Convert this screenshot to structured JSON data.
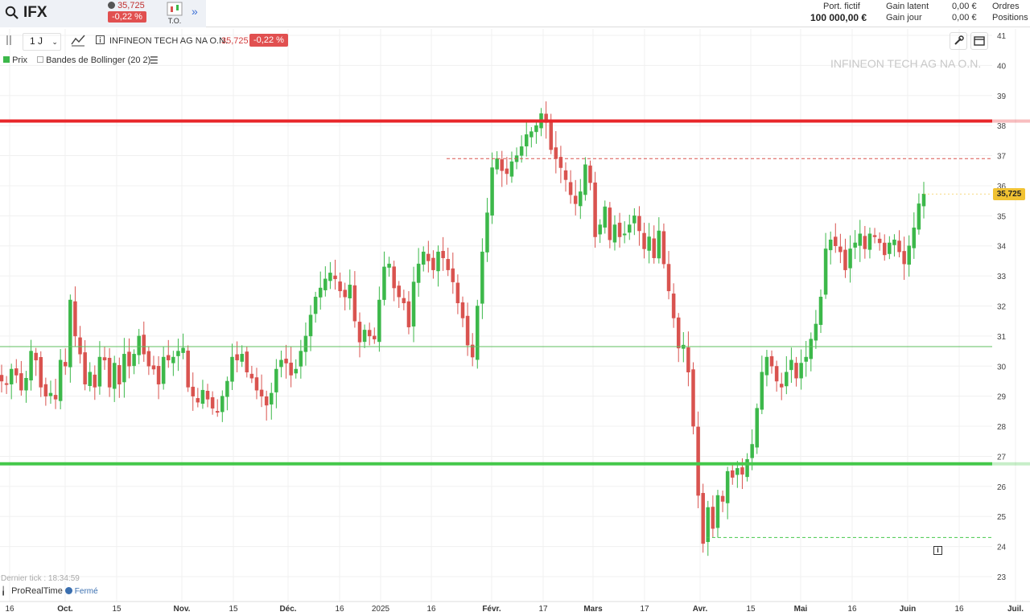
{
  "topbar": {
    "symbol": "IFX",
    "quote_price": "35,725",
    "quote_change": "-0,22 %",
    "to_label": "T.O.",
    "portfolio_label": "Port. fictif",
    "portfolio_value": "100 000,00 €",
    "latent_label": "Gain latent",
    "latent_value": "0,00 €",
    "day_label": "Gain jour",
    "day_value": "0,00 €",
    "orders_label": "Ordres",
    "positions_label": "Positions"
  },
  "toolbar": {
    "interval": "1 J",
    "instrument_name": "INFINEON TECH AG NA O.N.",
    "instrument_price": "35,725",
    "instrument_change": "-0,22 %"
  },
  "legend": {
    "price_label": "Prix",
    "bollinger_label": "Bandes de Bollinger (20 2)"
  },
  "watermark": "INFINEON TECH AG NA O.N.",
  "footer": {
    "last_tick": "Dernier tick : 18:34:59",
    "provider": "ProRealTime",
    "status": "Fermé"
  },
  "price_label": "35,725",
  "colors": {
    "up": "#3cb84a",
    "down": "#d9534f",
    "resistance": "#e8262a",
    "support": "#44c84a"
  },
  "chart_data": {
    "type": "candlestick",
    "y_ticks": [
      23,
      24,
      25,
      26,
      27,
      28,
      29,
      30,
      31,
      32,
      33,
      34,
      35,
      36,
      37,
      38,
      39,
      40,
      41
    ],
    "x_ticks": [
      "16",
      "Oct.",
      "15",
      "Nov.",
      "15",
      "Déc.",
      "16",
      "2025",
      "16",
      "Févr.",
      "17",
      "Mars",
      "17",
      "Avr.",
      "15",
      "Mai",
      "16",
      "Juin",
      "16",
      "Juil."
    ],
    "horizontal_lines": [
      {
        "value": 38.15,
        "style": "solid-thick",
        "color": "#e8262a"
      },
      {
        "value": 36.9,
        "style": "dashed",
        "color": "#d9534f"
      },
      {
        "value": 30.65,
        "style": "solid-thin",
        "color": "#5fbf5f"
      },
      {
        "value": 26.75,
        "style": "solid-thick",
        "color": "#44c84a"
      },
      {
        "value": 24.3,
        "style": "dashed",
        "color": "#44c84a"
      }
    ],
    "last_price": 35.725,
    "closes": [
      29.5,
      29.4,
      29.9,
      29.7,
      29.2,
      29.6,
      30.5,
      30.2,
      29.3,
      29.0,
      29.1,
      28.9,
      30.2,
      30.0,
      32.2,
      31.0,
      30.4,
      29.4,
      29.8,
      29.3,
      30.3,
      30.2,
      29.3,
      30.1,
      29.4,
      30.4,
      30.0,
      30.4,
      31.0,
      30.4,
      30.0,
      29.9,
      29.4,
      30.3,
      30.2,
      30.3,
      30.5,
      30.6,
      29.3,
      29.0,
      28.8,
      29.2,
      28.9,
      28.6,
      28.5,
      29.0,
      29.5,
      30.3,
      30.2,
      30.4,
      29.8,
      29.6,
      29.2,
      29.0,
      28.7,
      29.1,
      29.9,
      30.2,
      30.1,
      29.7,
      29.9,
      30.5,
      31.0,
      31.7,
      32.3,
      32.6,
      32.9,
      33.1,
      32.9,
      32.5,
      32.3,
      32.7,
      31.5,
      30.8,
      31.2,
      31.0,
      30.9,
      32.2,
      33.3,
      33.4,
      32.6,
      32.3,
      32.1,
      31.3,
      32.8,
      33.4,
      33.8,
      33.5,
      33.2,
      33.8,
      33.6,
      33.2,
      32.8,
      32.1,
      31.6,
      30.7,
      30.3,
      32.0,
      33.8,
      35.1,
      36.6,
      36.9,
      36.5,
      36.4,
      36.8,
      37.0,
      37.3,
      37.7,
      37.8,
      38.0,
      38.4,
      38.1,
      37.2,
      36.9,
      36.6,
      36.2,
      35.7,
      35.4,
      35.8,
      36.7,
      36.1,
      34.3,
      34.7,
      35.3,
      34.2,
      34.7,
      34.3,
      34.4,
      34.7,
      35.0,
      34.5,
      33.9,
      34.3,
      33.6,
      34.5,
      33.4,
      32.5,
      31.6,
      30.6,
      30.7,
      29.8,
      28.0,
      25.7,
      24.1,
      25.3,
      24.6,
      25.7,
      25.5,
      26.5,
      26.3,
      26.6,
      26.4,
      26.9,
      27.4,
      28.6,
      29.8,
      30.3,
      30.0,
      29.5,
      29.3,
      29.8,
      30.2,
      29.6,
      30.1,
      30.3,
      30.9,
      31.4,
      32.3,
      33.9,
      34.2,
      34.0,
      33.8,
      33.2,
      33.9,
      34.1,
      34.4,
      33.9,
      34.4,
      34.3,
      34.1,
      33.7,
      34.1,
      34.2,
      33.8,
      33.4,
      34.0,
      34.6,
      35.4,
      35.725
    ]
  }
}
